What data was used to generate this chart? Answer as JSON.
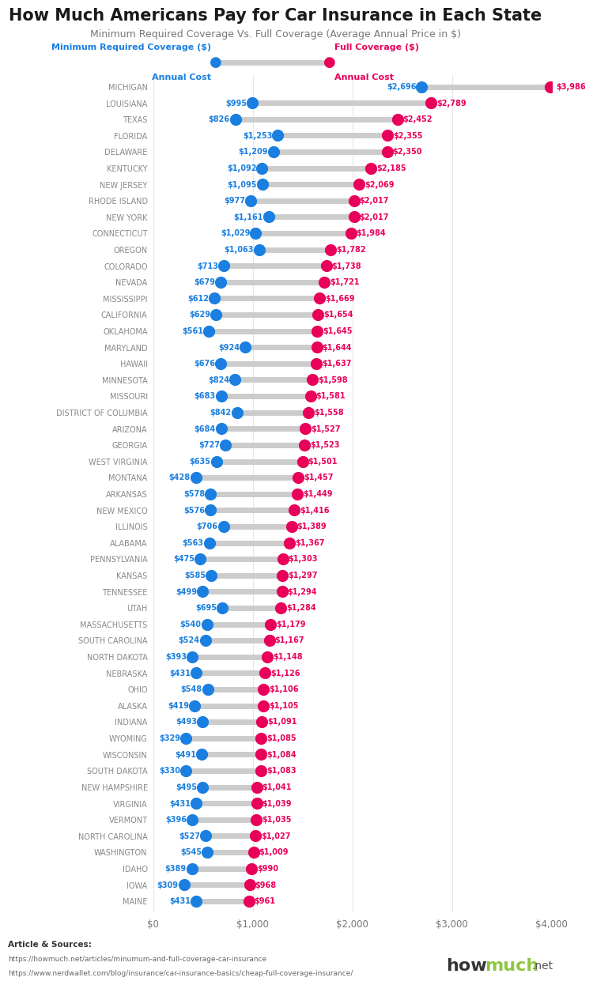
{
  "title": "How Much Americans Pay for Car Insurance in Each State",
  "subtitle": "Minimum Required Coverage Vs. Full Coverage (Average Annual Price in $)",
  "states": [
    "MICHIGAN",
    "LOUISIANA",
    "TEXAS",
    "FLORIDA",
    "DELAWARE",
    "KENTUCKY",
    "NEW JERSEY",
    "RHODE ISLAND",
    "NEW YORK",
    "CONNECTICUT",
    "OREGON",
    "COLORADO",
    "NEVADA",
    "MISSISSIPPI",
    "CALIFORNIA",
    "OKLAHOMA",
    "MARYLAND",
    "HAWAII",
    "MINNESOTA",
    "MISSOURI",
    "DISTRICT OF COLUMBIA",
    "ARIZONA",
    "GEORGIA",
    "WEST VIRGINIA",
    "MONTANA",
    "ARKANSAS",
    "NEW MEXICO",
    "ILLINOIS",
    "ALABAMA",
    "PENNSYLVANIA",
    "KANSAS",
    "TENNESSEE",
    "UTAH",
    "MASSACHUSETTS",
    "SOUTH CAROLINA",
    "NORTH DAKOTA",
    "NEBRASKA",
    "OHIO",
    "ALASKA",
    "INDIANA",
    "WYOMING",
    "WISCONSIN",
    "SOUTH DAKOTA",
    "NEW HAMPSHIRE",
    "VIRGINIA",
    "VERMONT",
    "NORTH CAROLINA",
    "WASHINGTON",
    "IDAHO",
    "IOWA",
    "MAINE"
  ],
  "min_coverage": [
    2696,
    995,
    826,
    1253,
    1209,
    1092,
    1095,
    977,
    1161,
    1029,
    1063,
    713,
    679,
    612,
    629,
    561,
    924,
    676,
    824,
    683,
    842,
    684,
    727,
    635,
    428,
    578,
    576,
    706,
    563,
    475,
    585,
    499,
    695,
    540,
    524,
    393,
    431,
    548,
    419,
    493,
    329,
    491,
    330,
    495,
    431,
    396,
    527,
    545,
    389,
    309,
    431
  ],
  "full_coverage": [
    3986,
    2789,
    2452,
    2355,
    2350,
    2185,
    2069,
    2017,
    2017,
    1984,
    1782,
    1738,
    1721,
    1669,
    1654,
    1645,
    1644,
    1637,
    1598,
    1581,
    1558,
    1527,
    1523,
    1501,
    1457,
    1449,
    1416,
    1389,
    1367,
    1303,
    1297,
    1294,
    1284,
    1179,
    1167,
    1148,
    1126,
    1106,
    1105,
    1091,
    1085,
    1084,
    1083,
    1041,
    1039,
    1035,
    1027,
    1009,
    990,
    968,
    961
  ],
  "dot_color_min": "#1A7FE0",
  "dot_color_full": "#E8005A",
  "line_color": "#CCCCCC",
  "text_color_min": "#1A7FE0",
  "text_color_full": "#E8005A",
  "title_color": "#1A1A1A",
  "subtitle_color": "#777777",
  "state_label_color": "#888888",
  "bg_color": "#FFFFFF",
  "grid_color": "#E5E5E5",
  "xmax": 4000,
  "article_label": "Article & Sources:",
  "source1": "https://howmuch.net/articles/minumum-and-full-coverage-car-insurance",
  "source2": "https://www.nerdwallet.com/blog/insurance/car-insurance-basics/cheap-full-coverage-insurance/"
}
